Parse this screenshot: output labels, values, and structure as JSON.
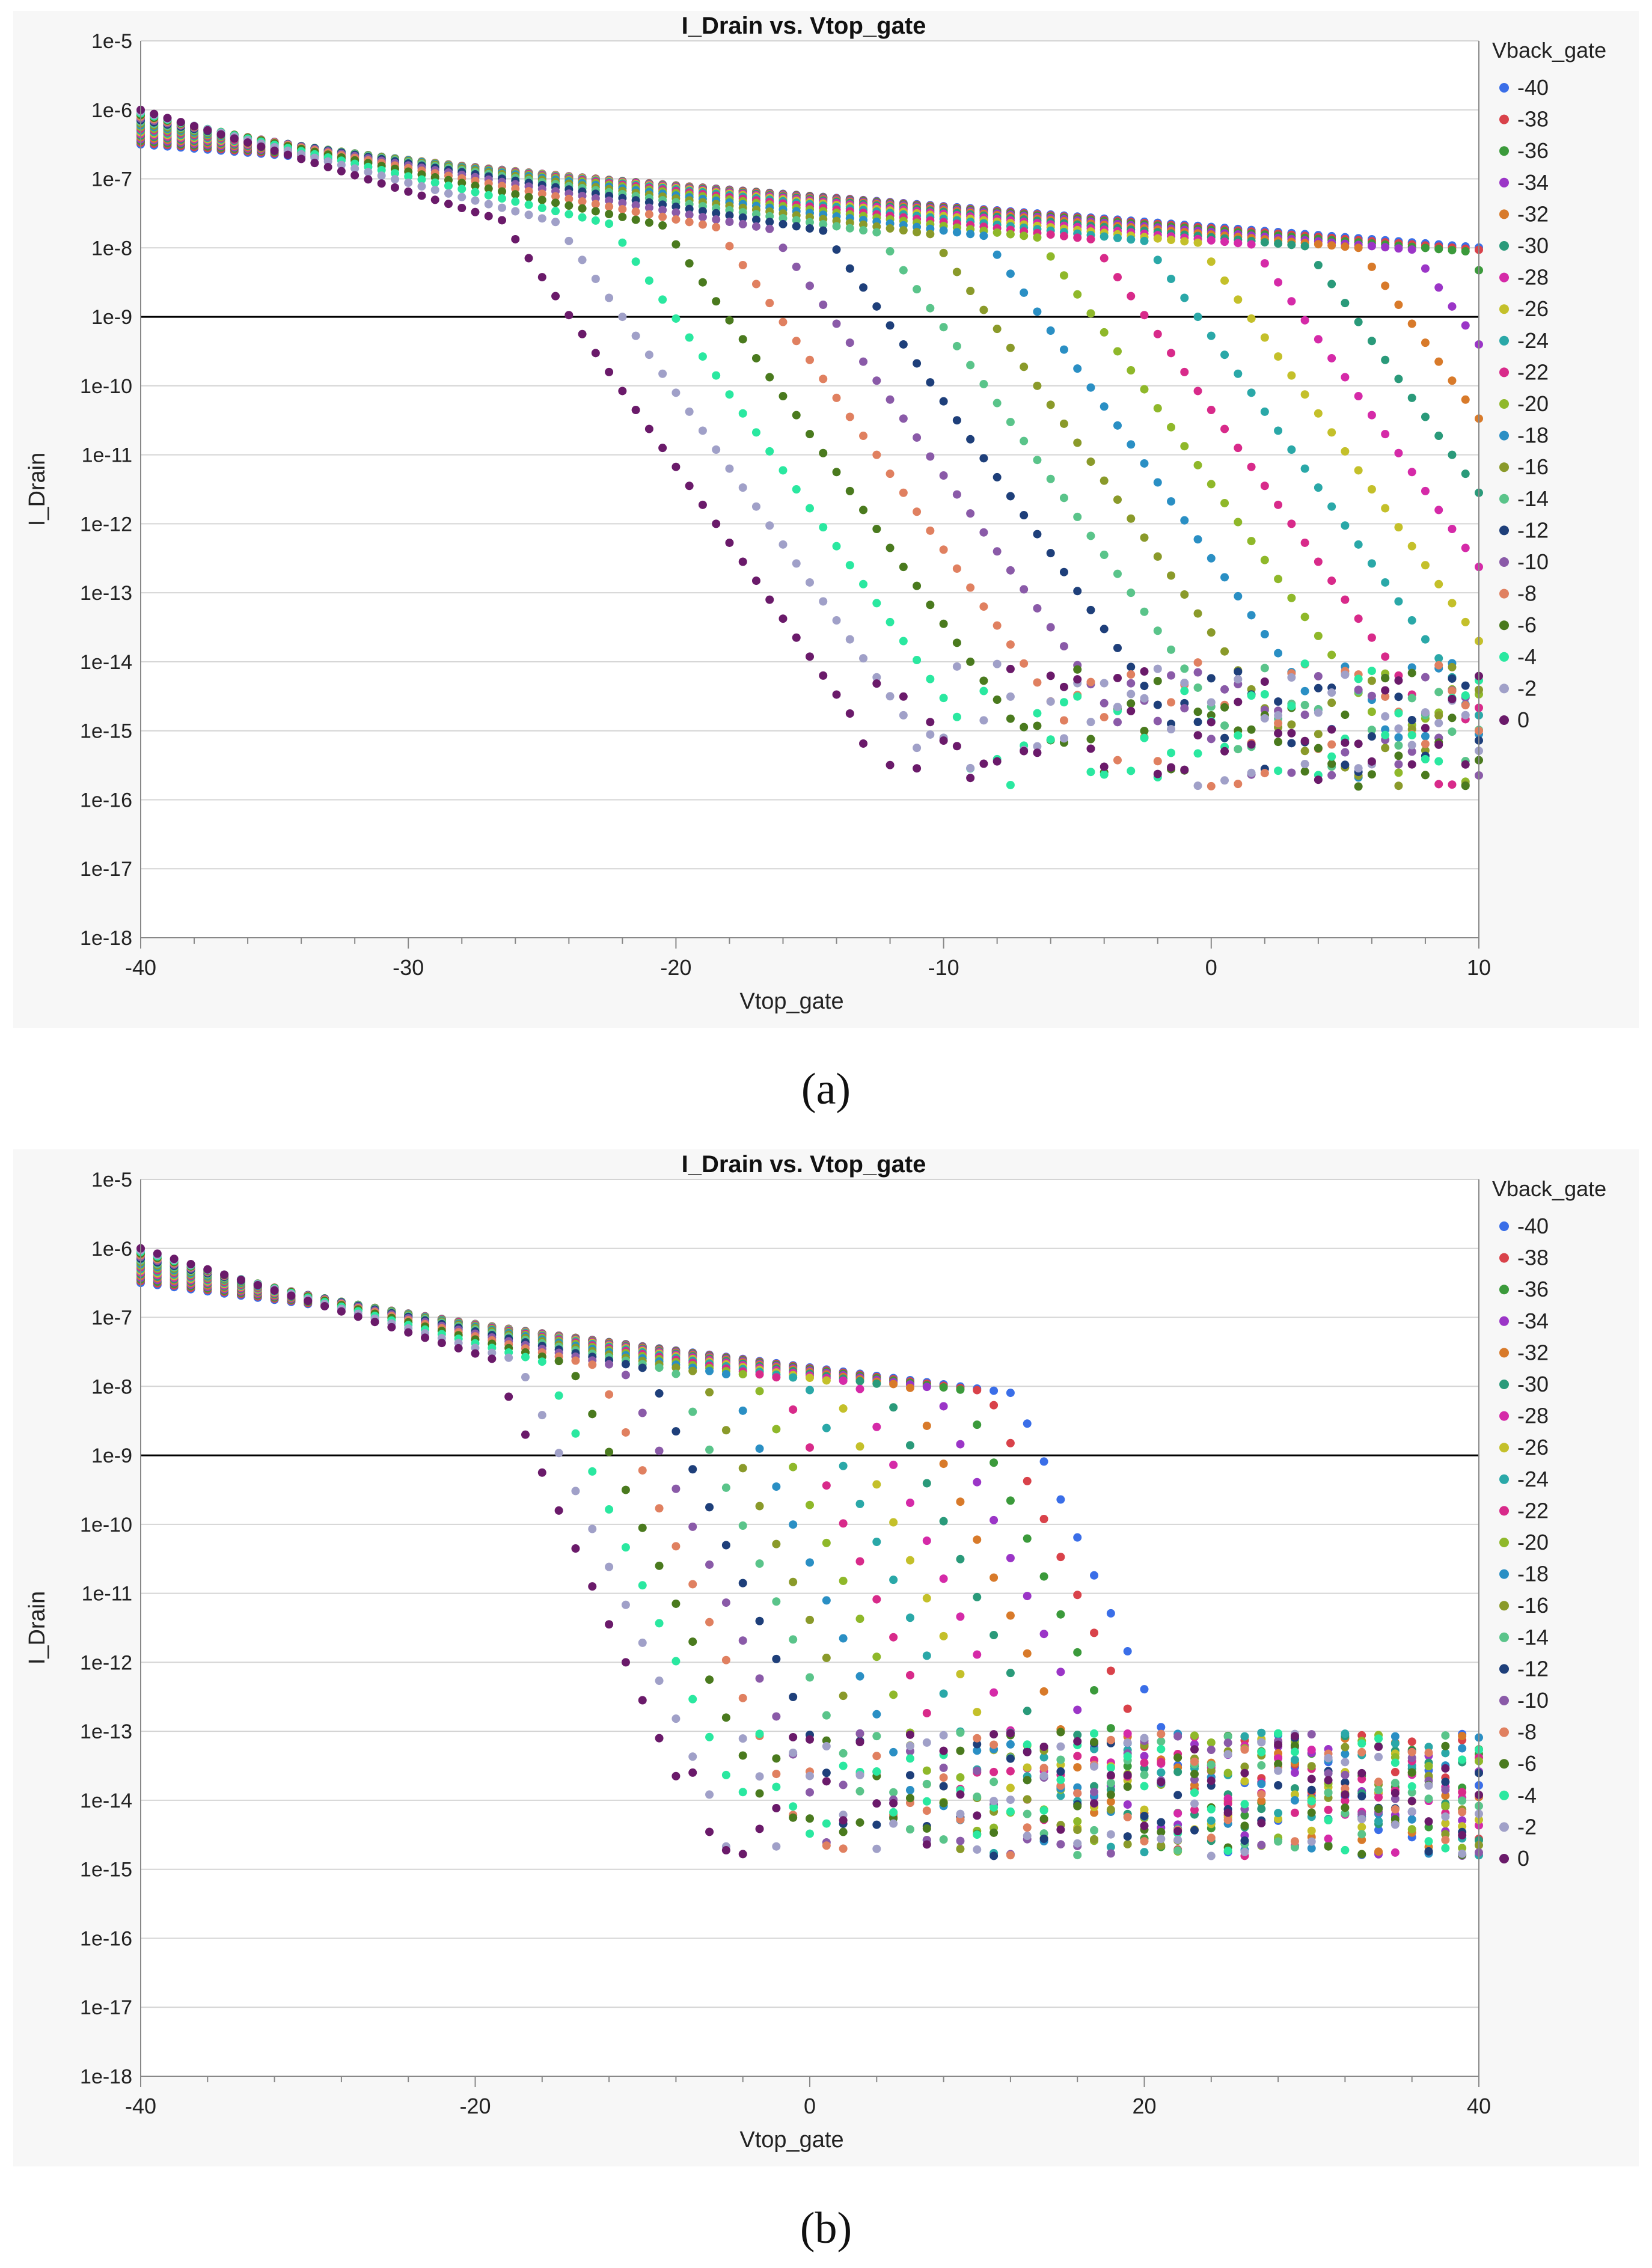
{
  "captions": [
    "(a)",
    "(b)"
  ],
  "chart_data": [
    {
      "type": "scatter",
      "title": "I_Drain vs. Vtop_gate",
      "xlabel": "Vtop_gate",
      "ylabel": "I_Drain",
      "yscale": "log",
      "xlim": [
        -40,
        10
      ],
      "ylim": [
        1e-18,
        1e-05
      ],
      "xticks": [
        "-40",
        "-30",
        "-20",
        "-10",
        "0",
        "10"
      ],
      "yticks": [
        "1e-5",
        "1e-6",
        "1e-7",
        "1e-8",
        "1e-9",
        "1e-10",
        "1e-11",
        "1e-12",
        "1e-13",
        "1e-14",
        "1e-15",
        "1e-16",
        "1e-17",
        "1e-18"
      ],
      "reference_line": 1e-09,
      "legend_title": "Vback_gate",
      "legend_position": "right",
      "series_names": [
        "-40",
        "-38",
        "-36",
        "-34",
        "-32",
        "-30",
        "-28",
        "-26",
        "-24",
        "-22",
        "-20",
        "-18",
        "-16",
        "-14",
        "-12",
        "-10",
        "-8",
        "-6",
        "-4",
        "-2",
        "0"
      ],
      "series_colors": [
        "#3a6ee8",
        "#d9424a",
        "#3b9a3b",
        "#9b35c7",
        "#d87a2a",
        "#2a9a7a",
        "#d52aa8",
        "#c4c02a",
        "#2aa8a8",
        "#d82a8a",
        "#8fb82a",
        "#2a8fc4",
        "#8a9a2a",
        "#5ac48a",
        "#1e3f7a",
        "#8a5aa8",
        "#e08060",
        "#4a7a1e",
        "#2ae8a0",
        "#a0a0c8",
        "#6a1a6a"
      ],
      "model": {
        "i_on": 1e-06,
        "v_th_at_vbg0": -26.5,
        "vth_shift_per_volt_vbg": -1.0,
        "i_floor": 1e-15,
        "step": 0.5
      }
    },
    {
      "type": "scatter",
      "title": "I_Drain vs. Vtop_gate",
      "xlabel": "Vtop_gate",
      "ylabel": "I_Drain",
      "yscale": "log",
      "xlim": [
        -40,
        40
      ],
      "ylim": [
        1e-18,
        1e-05
      ],
      "xticks": [
        "-40",
        "-20",
        "0",
        "20",
        "40"
      ],
      "yticks": [
        "1e-5",
        "1e-6",
        "1e-7",
        "1e-8",
        "1e-9",
        "1e-10",
        "1e-11",
        "1e-12",
        "1e-13",
        "1e-14",
        "1e-15",
        "1e-16",
        "1e-17",
        "1e-18"
      ],
      "reference_line": 1e-09,
      "legend_title": "Vback_gate",
      "legend_position": "right",
      "series_names": [
        "-40",
        "-38",
        "-36",
        "-34",
        "-32",
        "-30",
        "-28",
        "-26",
        "-24",
        "-22",
        "-20",
        "-18",
        "-16",
        "-14",
        "-12",
        "-10",
        "-8",
        "-6",
        "-4",
        "-2",
        "0"
      ],
      "series_colors": [
        "#3a6ee8",
        "#d9424a",
        "#3b9a3b",
        "#9b35c7",
        "#d87a2a",
        "#2a9a7a",
        "#d52aa8",
        "#c4c02a",
        "#2aa8a8",
        "#d82a8a",
        "#8fb82a",
        "#2a8fc4",
        "#8a9a2a",
        "#5ac48a",
        "#1e3f7a",
        "#8a5aa8",
        "#e08060",
        "#4a7a1e",
        "#2ae8a0",
        "#a0a0c8",
        "#6a1a6a"
      ],
      "model": {
        "i_on": 1e-06,
        "v_th_at_vbg0": -19,
        "vth_shift_per_volt_vbg": -0.78,
        "i_floor": 1e-14,
        "step": 1.0
      }
    }
  ]
}
